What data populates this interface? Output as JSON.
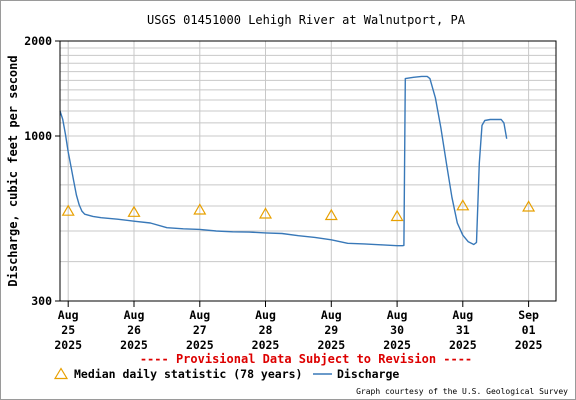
{
  "chart_data": {
    "type": "line",
    "title": "USGS 01451000 Lehigh River at Walnutport, PA",
    "ylabel": "Discharge, cubic feet per second",
    "xlabel": "",
    "yscale": "log",
    "ylim": [
      300,
      2000
    ],
    "ytick_labels": [
      "2000",
      "1000",
      "300"
    ],
    "ytick_values": [
      2000,
      1000,
      300
    ],
    "xlim": [
      "2025-08-24T21:00",
      "2025-09-01T10:00"
    ],
    "xticks": [
      {
        "lines": [
          "Aug",
          "25",
          "2025"
        ],
        "date": "2025-08-25T00:00"
      },
      {
        "lines": [
          "Aug",
          "26",
          "2025"
        ],
        "date": "2025-08-26T00:00"
      },
      {
        "lines": [
          "Aug",
          "27",
          "2025"
        ],
        "date": "2025-08-27T00:00"
      },
      {
        "lines": [
          "Aug",
          "28",
          "2025"
        ],
        "date": "2025-08-28T00:00"
      },
      {
        "lines": [
          "Aug",
          "29",
          "2025"
        ],
        "date": "2025-08-29T00:00"
      },
      {
        "lines": [
          "Aug",
          "30",
          "2025"
        ],
        "date": "2025-08-30T00:00"
      },
      {
        "lines": [
          "Aug",
          "31",
          "2025"
        ],
        "date": "2025-08-31T00:00"
      },
      {
        "lines": [
          "Sep",
          "01",
          "2025"
        ],
        "date": "2025-09-01T00:00"
      }
    ],
    "grid": true,
    "series": [
      {
        "name": "Discharge",
        "color": "#3878b8",
        "points": [
          [
            "2025-08-24T21:00",
            1200
          ],
          [
            "2025-08-24T22:00",
            1130
          ],
          [
            "2025-08-24T23:00",
            1010
          ],
          [
            "2025-08-25T00:00",
            890
          ],
          [
            "2025-08-25T01:00",
            800
          ],
          [
            "2025-08-25T02:00",
            720
          ],
          [
            "2025-08-25T03:00",
            650
          ],
          [
            "2025-08-25T04:00",
            605
          ],
          [
            "2025-08-25T05:00",
            578
          ],
          [
            "2025-08-25T06:00",
            565
          ],
          [
            "2025-08-25T09:00",
            556
          ],
          [
            "2025-08-25T12:00",
            551
          ],
          [
            "2025-08-25T18:00",
            545
          ],
          [
            "2025-08-26T00:00",
            537
          ],
          [
            "2025-08-26T06:00",
            530
          ],
          [
            "2025-08-26T12:00",
            512
          ],
          [
            "2025-08-26T18:00",
            508
          ],
          [
            "2025-08-27T00:00",
            506
          ],
          [
            "2025-08-27T06:00",
            500
          ],
          [
            "2025-08-27T12:00",
            497
          ],
          [
            "2025-08-27T18:00",
            496
          ],
          [
            "2025-08-28T00:00",
            493
          ],
          [
            "2025-08-28T06:00",
            491
          ],
          [
            "2025-08-28T12:00",
            483
          ],
          [
            "2025-08-28T18:00",
            477
          ],
          [
            "2025-08-29T00:00",
            469
          ],
          [
            "2025-08-29T06:00",
            457
          ],
          [
            "2025-08-29T12:00",
            455
          ],
          [
            "2025-08-29T18:00",
            452
          ],
          [
            "2025-08-30T00:00",
            449
          ],
          [
            "2025-08-30T02:00",
            449
          ],
          [
            "2025-08-30T02:30",
            450
          ],
          [
            "2025-08-30T03:00",
            1520
          ],
          [
            "2025-08-30T06:00",
            1535
          ],
          [
            "2025-08-30T09:00",
            1545
          ],
          [
            "2025-08-30T11:00",
            1545
          ],
          [
            "2025-08-30T12:00",
            1520
          ],
          [
            "2025-08-30T14:00",
            1320
          ],
          [
            "2025-08-30T16:00",
            1060
          ],
          [
            "2025-08-30T18:00",
            820
          ],
          [
            "2025-08-30T20:00",
            640
          ],
          [
            "2025-08-30T22:00",
            530
          ],
          [
            "2025-08-31T00:00",
            485
          ],
          [
            "2025-08-31T02:00",
            462
          ],
          [
            "2025-08-31T04:00",
            453
          ],
          [
            "2025-08-31T05:00",
            460
          ],
          [
            "2025-08-31T06:00",
            820
          ],
          [
            "2025-08-31T07:00",
            1080
          ],
          [
            "2025-08-31T08:00",
            1120
          ],
          [
            "2025-08-31T10:00",
            1128
          ],
          [
            "2025-08-31T14:00",
            1128
          ],
          [
            "2025-08-31T15:00",
            1100
          ],
          [
            "2025-08-31T16:00",
            980
          ]
        ]
      }
    ],
    "median": {
      "name": "Median daily statistic (78 years)",
      "color": "#e8a000",
      "points": [
        [
          "2025-08-25T00:00",
          580
        ],
        [
          "2025-08-26T00:00",
          575
        ],
        [
          "2025-08-27T00:00",
          585
        ],
        [
          "2025-08-28T00:00",
          568
        ],
        [
          "2025-08-29T00:00",
          562
        ],
        [
          "2025-08-30T00:00",
          558
        ],
        [
          "2025-08-31T00:00",
          603
        ],
        [
          "2025-09-01T00:00",
          598
        ]
      ]
    },
    "notice": "---- Provisional Data Subject to Revision ----",
    "notice_color": "#dd0000",
    "legend_position": "bottom",
    "credit": "Graph courtesy of the U.S. Geological Survey"
  }
}
